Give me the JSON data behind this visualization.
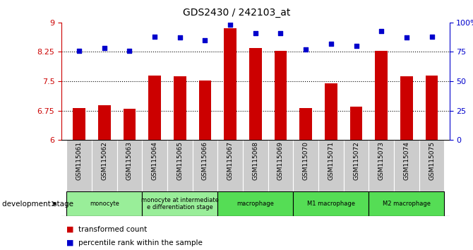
{
  "title": "GDS2430 / 242103_at",
  "samples": [
    "GSM115061",
    "GSM115062",
    "GSM115063",
    "GSM115064",
    "GSM115065",
    "GSM115066",
    "GSM115067",
    "GSM115068",
    "GSM115069",
    "GSM115070",
    "GSM115071",
    "GSM115072",
    "GSM115073",
    "GSM115074",
    "GSM115075"
  ],
  "bar_values": [
    6.82,
    6.88,
    6.8,
    7.65,
    7.62,
    7.52,
    8.85,
    8.35,
    8.27,
    6.82,
    7.45,
    6.85,
    8.27,
    7.62,
    7.65
  ],
  "scatter_values": [
    76,
    78,
    76,
    88,
    87,
    85,
    98,
    91,
    91,
    77,
    82,
    80,
    93,
    87,
    88
  ],
  "bar_color": "#cc0000",
  "scatter_color": "#0000cc",
  "ylim_left": [
    6,
    9
  ],
  "ylim_right": [
    0,
    100
  ],
  "yticks_left": [
    6,
    6.75,
    7.5,
    8.25,
    9
  ],
  "yticks_right": [
    0,
    25,
    50,
    75,
    100
  ],
  "ytick_labels_left": [
    "6",
    "6.75",
    "7.5",
    "8.25",
    "9"
  ],
  "ytick_labels_right": [
    "0",
    "25",
    "50",
    "75",
    "100%"
  ],
  "grid_values": [
    6.75,
    7.5,
    8.25
  ],
  "stage_groups": [
    {
      "label": "monocyte",
      "start": 0,
      "end": 3,
      "color": "#99ee99"
    },
    {
      "label": "monocyte at intermediate\ne differentiation stage",
      "start": 3,
      "end": 6,
      "color": "#99ee99"
    },
    {
      "label": "macrophage",
      "start": 6,
      "end": 9,
      "color": "#55dd55"
    },
    {
      "label": "M1 macrophage",
      "start": 9,
      "end": 12,
      "color": "#55dd55"
    },
    {
      "label": "M2 macrophage",
      "start": 12,
      "end": 15,
      "color": "#55dd55"
    }
  ],
  "legend_bar_label": "transformed count",
  "legend_scatter_label": "percentile rank within the sample",
  "dev_stage_label": "development stage",
  "bar_width": 0.5,
  "sample_bg_color": "#cccccc"
}
